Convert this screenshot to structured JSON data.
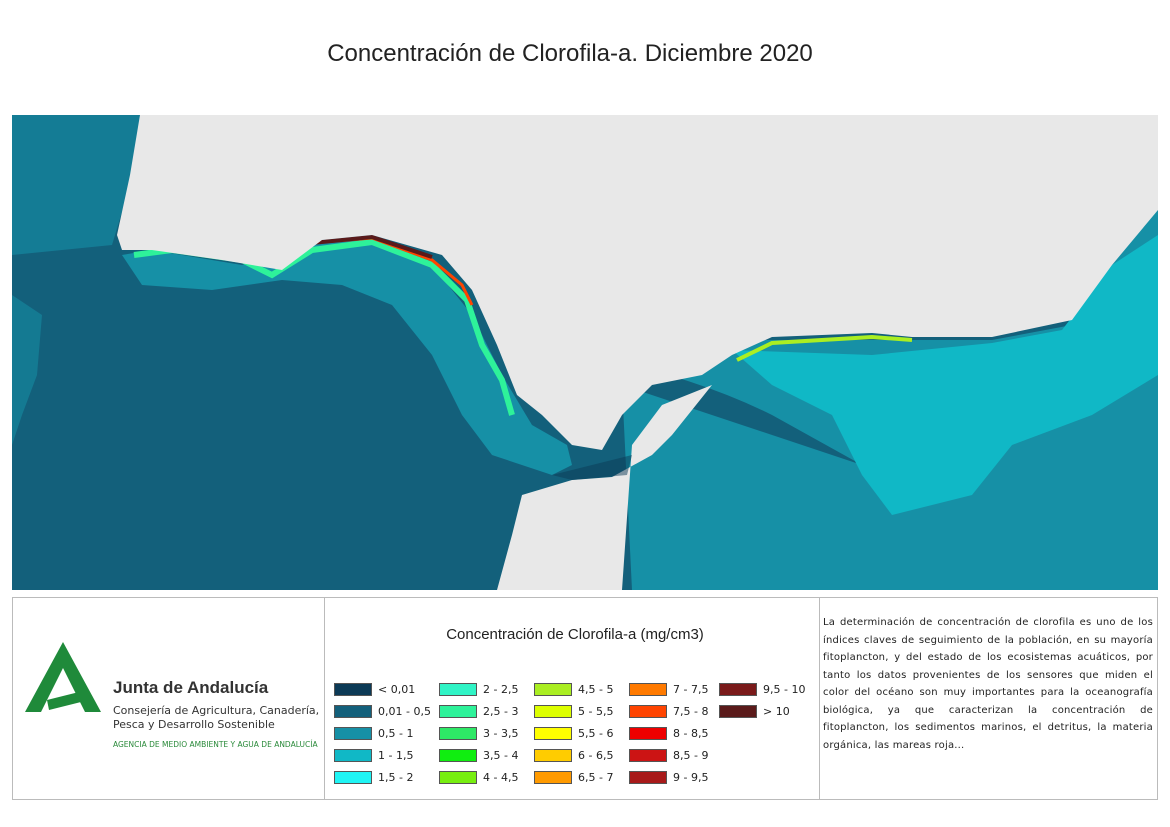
{
  "title": "Concentración de Clorofila-a. Diciembre 2020",
  "legend": {
    "title": "Concentración de Clorofila-a (mg/cm3)",
    "items": [
      {
        "label": "< 0,01",
        "color": "#0c3a56"
      },
      {
        "label": "0,01 - 0,5",
        "color": "#13607b"
      },
      {
        "label": "0,5 - 1",
        "color": "#1690a6"
      },
      {
        "label": "1 - 1,5",
        "color": "#10b8c6"
      },
      {
        "label": "1,5 - 2",
        "color": "#1ff4f4"
      },
      {
        "label": "2 - 2,5",
        "color": "#30f4c6"
      },
      {
        "label": "2,5 - 3",
        "color": "#2ef29a"
      },
      {
        "label": "3 - 3,5",
        "color": "#2ee866"
      },
      {
        "label": "3,5 - 4",
        "color": "#10ee10"
      },
      {
        "label": "4 - 4,5",
        "color": "#77ee10"
      },
      {
        "label": "4,5 - 5",
        "color": "#aaee22"
      },
      {
        "label": "5 - 5,5",
        "color": "#ddff00"
      },
      {
        "label": "5,5 - 6",
        "color": "#ffff00"
      },
      {
        "label": "6 - 6,5",
        "color": "#ffcc00"
      },
      {
        "label": "6,5 - 7",
        "color": "#ff9a00"
      },
      {
        "label": "7 - 7,5",
        "color": "#ff7a00"
      },
      {
        "label": "7,5 - 8",
        "color": "#ff4400"
      },
      {
        "label": "8 - 8,5",
        "color": "#ee0000"
      },
      {
        "label": "8,5 - 9",
        "color": "#cc1414"
      },
      {
        "label": "9 - 9,5",
        "color": "#a81a1a"
      },
      {
        "label": "9,5 - 10",
        "color": "#7a1a1a"
      },
      {
        "label": "> 10",
        "color": "#5a1a1a"
      }
    ]
  },
  "logo": {
    "name": "Junta de Andalucía",
    "department_line1": "Consejería de Agricultura, Canadería,",
    "department_line2": "Pesca y Desarrollo Sostenible",
    "agency": "AGENCIA DE MEDIO AMBIENTE Y AGUA DE ANDALUCÍA"
  },
  "description": "La determinación de concentración de clorofila es uno de los índices claves de seguimiento de la población, en su mayoría fitoplancton, y del estado de los ecosistemas acuáticos, por tanto los datos provenientes de los sensores que miden el color del océano son muy importantes para la oceanografía biológica, ya que caracterizan la concentración de fitoplancton, los sedimentos marinos, el detritus, la materia orgánica, las mareas roja..."
}
